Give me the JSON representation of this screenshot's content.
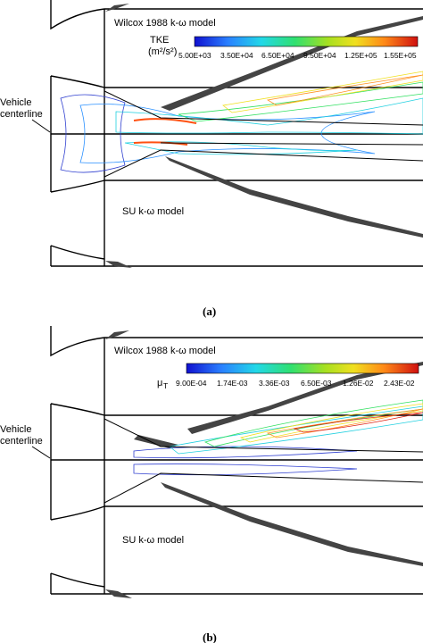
{
  "panels": [
    {
      "id": "a",
      "caption": "(a)",
      "top_model": "Wilcox 1988 k-ω model",
      "bottom_model": "SU k-ω model",
      "centerline_label_1": "Vehicle",
      "centerline_label_2": "centerline",
      "legend_title_1": "TKE",
      "legend_title_2": "(m²/s²)",
      "legend_ticks": [
        "5.00E+03",
        "3.50E+04",
        "6.50E+04",
        "9.50E+04",
        "1.25E+05",
        "1.55E+05"
      ]
    },
    {
      "id": "b",
      "caption": "(b)",
      "top_model": "Wilcox 1988 k-ω model",
      "bottom_model": "SU k-ω model",
      "centerline_label_1": "Vehicle",
      "centerline_label_2": "centerline",
      "legend_title_1": "μ",
      "legend_title_2": "T",
      "legend_ticks": [
        "9.00E-04",
        "1.74E-03",
        "3.36E-03",
        "6.50E-03",
        "1.26E-02",
        "2.43E-02"
      ]
    }
  ],
  "colorbar_colors": [
    "#1010d0",
    "#2050ff",
    "#2aa0ff",
    "#22e0e0",
    "#30e060",
    "#a0e020",
    "#f0e020",
    "#ffa020",
    "#ff5010",
    "#d01010"
  ]
}
